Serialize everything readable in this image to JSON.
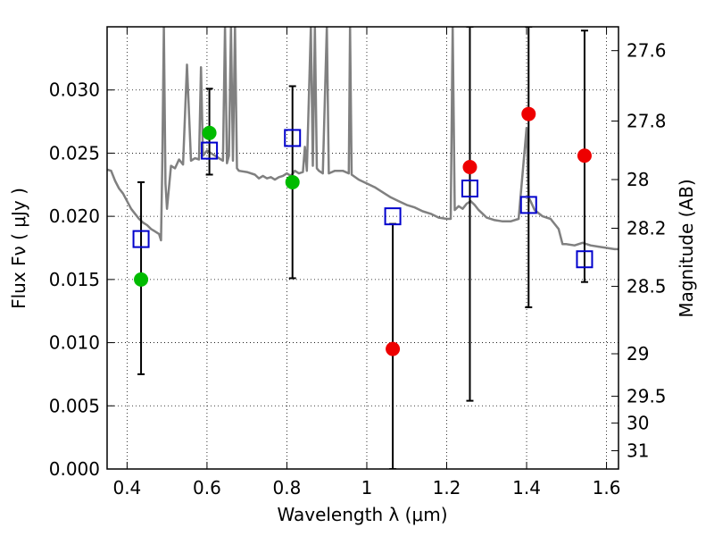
{
  "chart_data": {
    "type": "scatter",
    "xlabel": "Wavelength  λ (μm)",
    "ylabel": "Flux  Fν  ( μJy )",
    "y2label": "Magnitude (AB)",
    "xlim": [
      0.35,
      1.63
    ],
    "ylim": [
      0.0,
      0.035
    ],
    "grid": true,
    "x_ticks": [
      0.4,
      0.6,
      0.8,
      1.0,
      1.2,
      1.4,
      1.6
    ],
    "x_tick_labels": [
      "0.4",
      "0.6",
      "0.8",
      "1",
      "1.2",
      "1.4",
      "1.6"
    ],
    "y_ticks": [
      0.0,
      0.005,
      0.01,
      0.015,
      0.02,
      0.025,
      0.03
    ],
    "y_tick_labels": [
      "0.000",
      "0.005",
      "0.010",
      "0.015",
      "0.020",
      "0.025",
      "0.030"
    ],
    "magnitude_ticks": [
      {
        "label": "27.6",
        "mag": 27.6
      },
      {
        "label": "27.8",
        "mag": 27.8
      },
      {
        "label": "28",
        "mag": 28.0
      },
      {
        "label": "28.2",
        "mag": 28.2
      },
      {
        "label": "28.5",
        "mag": 28.5
      },
      {
        "label": "29",
        "mag": 29.0
      },
      {
        "label": "29.5",
        "mag": 29.5
      },
      {
        "label": "30",
        "mag": 30.0
      },
      {
        "label": "31",
        "mag": 31.0
      }
    ],
    "model_spectrum": {
      "color": "#808080",
      "points": [
        [
          0.35,
          0.0237
        ],
        [
          0.36,
          0.0236
        ],
        [
          0.37,
          0.0228
        ],
        [
          0.38,
          0.0222
        ],
        [
          0.39,
          0.0218
        ],
        [
          0.4,
          0.0212
        ],
        [
          0.41,
          0.0206
        ],
        [
          0.42,
          0.0202
        ],
        [
          0.43,
          0.0198
        ],
        [
          0.44,
          0.0195
        ],
        [
          0.45,
          0.0193
        ],
        [
          0.46,
          0.019
        ],
        [
          0.47,
          0.0188
        ],
        [
          0.48,
          0.0186
        ],
        [
          0.485,
          0.0181
        ],
        [
          0.488,
          0.0239
        ],
        [
          0.492,
          0.035
        ],
        [
          0.496,
          0.0226
        ],
        [
          0.5,
          0.0206
        ],
        [
          0.51,
          0.024
        ],
        [
          0.52,
          0.0238
        ],
        [
          0.53,
          0.0245
        ],
        [
          0.54,
          0.0241
        ],
        [
          0.55,
          0.032
        ],
        [
          0.56,
          0.0244
        ],
        [
          0.57,
          0.0246
        ],
        [
          0.58,
          0.0245
        ],
        [
          0.585,
          0.0318
        ],
        [
          0.59,
          0.0248
        ],
        [
          0.6,
          0.0252
        ],
        [
          0.61,
          0.025
        ],
        [
          0.62,
          0.0248
        ],
        [
          0.63,
          0.0246
        ],
        [
          0.64,
          0.0244
        ],
        [
          0.645,
          0.035
        ],
        [
          0.65,
          0.0242
        ],
        [
          0.655,
          0.0248
        ],
        [
          0.66,
          0.035
        ],
        [
          0.665,
          0.0244
        ],
        [
          0.67,
          0.035
        ],
        [
          0.675,
          0.0238
        ],
        [
          0.68,
          0.0236
        ],
        [
          0.7,
          0.0235
        ],
        [
          0.72,
          0.0233
        ],
        [
          0.73,
          0.023
        ],
        [
          0.74,
          0.0232
        ],
        [
          0.75,
          0.023
        ],
        [
          0.76,
          0.0231
        ],
        [
          0.77,
          0.0229
        ],
        [
          0.78,
          0.0231
        ],
        [
          0.79,
          0.0232
        ],
        [
          0.8,
          0.0234
        ],
        [
          0.81,
          0.0232
        ],
        [
          0.82,
          0.0236
        ],
        [
          0.83,
          0.0234
        ],
        [
          0.84,
          0.0235
        ],
        [
          0.845,
          0.0255
        ],
        [
          0.85,
          0.0236
        ],
        [
          0.86,
          0.035
        ],
        [
          0.865,
          0.024
        ],
        [
          0.87,
          0.035
        ],
        [
          0.875,
          0.0238
        ],
        [
          0.88,
          0.0236
        ],
        [
          0.89,
          0.0234
        ],
        [
          0.9,
          0.035
        ],
        [
          0.905,
          0.0234
        ],
        [
          0.92,
          0.0236
        ],
        [
          0.94,
          0.0236
        ],
        [
          0.955,
          0.0234
        ],
        [
          0.958,
          0.035
        ],
        [
          0.962,
          0.0233
        ],
        [
          0.98,
          0.0229
        ],
        [
          1.0,
          0.0226
        ],
        [
          1.02,
          0.0223
        ],
        [
          1.04,
          0.0219
        ],
        [
          1.06,
          0.0215
        ],
        [
          1.08,
          0.0212
        ],
        [
          1.1,
          0.0209
        ],
        [
          1.12,
          0.0207
        ],
        [
          1.14,
          0.0204
        ],
        [
          1.16,
          0.0202
        ],
        [
          1.18,
          0.0199
        ],
        [
          1.2,
          0.0198
        ],
        [
          1.21,
          0.0198
        ],
        [
          1.215,
          0.035
        ],
        [
          1.22,
          0.0205
        ],
        [
          1.23,
          0.0208
        ],
        [
          1.24,
          0.0206
        ],
        [
          1.25,
          0.021
        ],
        [
          1.26,
          0.0212
        ],
        [
          1.27,
          0.0209
        ],
        [
          1.28,
          0.0205
        ],
        [
          1.29,
          0.0202
        ],
        [
          1.3,
          0.0199
        ],
        [
          1.32,
          0.0197
        ],
        [
          1.34,
          0.0196
        ],
        [
          1.36,
          0.0196
        ],
        [
          1.38,
          0.0198
        ],
        [
          1.4,
          0.027
        ],
        [
          1.405,
          0.0215
        ],
        [
          1.41,
          0.0212
        ],
        [
          1.42,
          0.0205
        ],
        [
          1.44,
          0.02
        ],
        [
          1.46,
          0.0198
        ],
        [
          1.48,
          0.019
        ],
        [
          1.49,
          0.0178
        ],
        [
          1.5,
          0.0178
        ],
        [
          1.52,
          0.0177
        ],
        [
          1.54,
          0.0179
        ],
        [
          1.56,
          0.0177
        ],
        [
          1.58,
          0.0176
        ],
        [
          1.6,
          0.0175
        ],
        [
          1.62,
          0.0174
        ],
        [
          1.63,
          0.0174
        ]
      ]
    },
    "model_photometry": {
      "marker": "open-square",
      "color": "#0000cc",
      "points": [
        {
          "x": 0.435,
          "y": 0.0182
        },
        {
          "x": 0.606,
          "y": 0.0252
        },
        {
          "x": 0.814,
          "y": 0.0262
        },
        {
          "x": 1.065,
          "y": 0.02
        },
        {
          "x": 1.258,
          "y": 0.0222
        },
        {
          "x": 1.405,
          "y": 0.0209
        },
        {
          "x": 1.545,
          "y": 0.0166
        }
      ]
    },
    "observed_detections": {
      "marker": "filled-circle",
      "color": "#00bb00",
      "points": [
        {
          "x": 0.435,
          "y": 0.015,
          "err_low": 0.0075,
          "err_high": 0.0227
        },
        {
          "x": 0.606,
          "y": 0.0266,
          "err_low": 0.0233,
          "err_high": 0.0301
        },
        {
          "x": 0.814,
          "y": 0.0227,
          "err_low": 0.0151,
          "err_high": 0.0303
        }
      ]
    },
    "observed_nondetections": {
      "marker": "filled-circle",
      "color": "#ee0000",
      "points": [
        {
          "x": 1.065,
          "y": 0.0095,
          "err_low": 0.0,
          "err_high": 0.0194
        },
        {
          "x": 1.258,
          "y": 0.0239,
          "err_low": 0.0054,
          "err_high": 0.035
        },
        {
          "x": 1.405,
          "y": 0.0281,
          "err_low": 0.0128,
          "err_high": 0.035
        },
        {
          "x": 1.545,
          "y": 0.0248,
          "err_low": 0.0148,
          "err_high": 0.0347
        }
      ]
    }
  }
}
